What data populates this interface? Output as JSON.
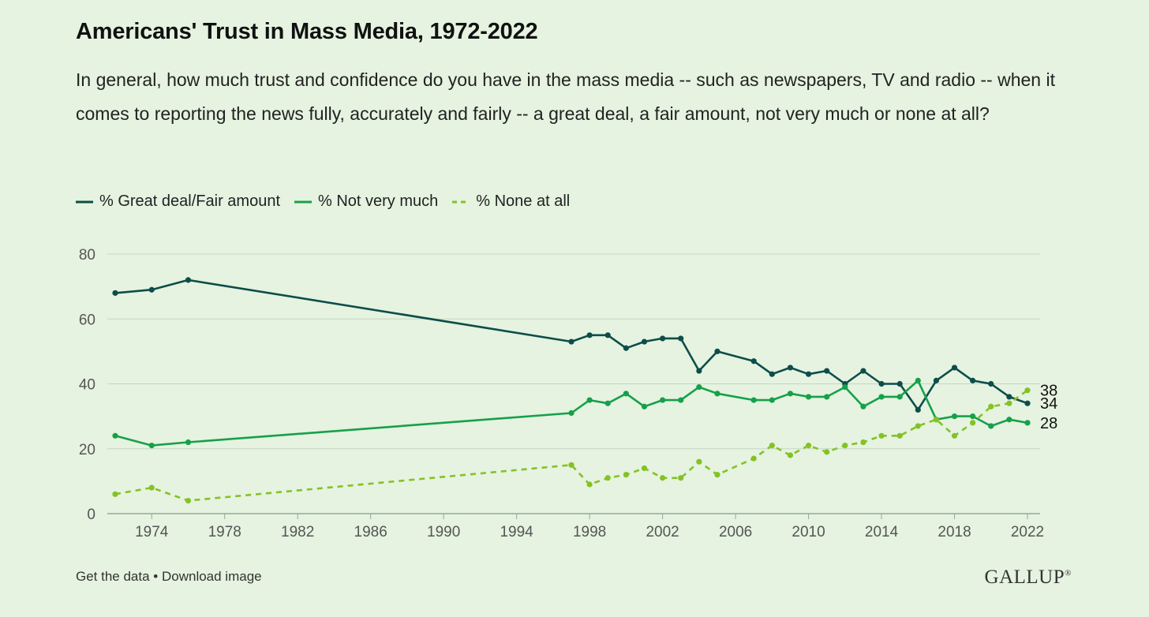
{
  "title": "Americans' Trust in Mass Media, 1972-2022",
  "subtitle": "In general, how much trust and confidence do you have in the mass media -- such as newspapers, TV and radio -- when it comes to reporting the news fully, accurately and fairly -- a great deal, a fair amount, not very much or none at all?",
  "footer": {
    "get_data": "Get the data",
    "separator": " • ",
    "download": "Download image",
    "logo": "GALLUP",
    "logo_mark": "®"
  },
  "chart_data": {
    "type": "line",
    "xlim": [
      1972,
      2022
    ],
    "ylim": [
      0,
      80
    ],
    "yticks": [
      0,
      20,
      40,
      60,
      80
    ],
    "xticks": [
      1974,
      1978,
      1982,
      1986,
      1990,
      1994,
      1998,
      2002,
      2006,
      2010,
      2014,
      2018,
      2022
    ],
    "grid": "horizontal",
    "legend_placement": "top-left",
    "series": [
      {
        "name": "% Great deal/Fair amount",
        "color": "#0d4d4a",
        "style": "solid",
        "end_label": "34",
        "points": [
          [
            1972,
            68
          ],
          [
            1974,
            69
          ],
          [
            1976,
            72
          ],
          [
            1997,
            53
          ],
          [
            1998,
            55
          ],
          [
            1999,
            55
          ],
          [
            2000,
            51
          ],
          [
            2001,
            53
          ],
          [
            2002,
            54
          ],
          [
            2003,
            54
          ],
          [
            2004,
            44
          ],
          [
            2005,
            50
          ],
          [
            2007,
            47
          ],
          [
            2008,
            43
          ],
          [
            2009,
            45
          ],
          [
            2010,
            43
          ],
          [
            2011,
            44
          ],
          [
            2012,
            40
          ],
          [
            2013,
            44
          ],
          [
            2014,
            40
          ],
          [
            2015,
            40
          ],
          [
            2016,
            32
          ],
          [
            2017,
            41
          ],
          [
            2018,
            45
          ],
          [
            2019,
            41
          ],
          [
            2020,
            40
          ],
          [
            2021,
            36
          ],
          [
            2022,
            34
          ]
        ]
      },
      {
        "name": "% Not very much",
        "color": "#16a04a",
        "style": "solid",
        "end_label": "28",
        "points": [
          [
            1972,
            24
          ],
          [
            1974,
            21
          ],
          [
            1976,
            22
          ],
          [
            1997,
            31
          ],
          [
            1998,
            35
          ],
          [
            1999,
            34
          ],
          [
            2000,
            37
          ],
          [
            2001,
            33
          ],
          [
            2002,
            35
          ],
          [
            2003,
            35
          ],
          [
            2004,
            39
          ],
          [
            2005,
            37
          ],
          [
            2007,
            35
          ],
          [
            2008,
            35
          ],
          [
            2009,
            37
          ],
          [
            2010,
            36
          ],
          [
            2011,
            36
          ],
          [
            2012,
            39
          ],
          [
            2013,
            33
          ],
          [
            2014,
            36
          ],
          [
            2015,
            36
          ],
          [
            2016,
            41
          ],
          [
            2017,
            29
          ],
          [
            2018,
            30
          ],
          [
            2019,
            30
          ],
          [
            2020,
            27
          ],
          [
            2021,
            29
          ],
          [
            2022,
            28
          ]
        ]
      },
      {
        "name": "% None at all",
        "color": "#84c225",
        "style": "dashed",
        "end_label": "38",
        "points": [
          [
            1972,
            6
          ],
          [
            1974,
            8
          ],
          [
            1976,
            4
          ],
          [
            1997,
            15
          ],
          [
            1998,
            9
          ],
          [
            1999,
            11
          ],
          [
            2000,
            12
          ],
          [
            2001,
            14
          ],
          [
            2002,
            11
          ],
          [
            2003,
            11
          ],
          [
            2004,
            16
          ],
          [
            2005,
            12
          ],
          [
            2007,
            17
          ],
          [
            2008,
            21
          ],
          [
            2009,
            18
          ],
          [
            2010,
            21
          ],
          [
            2011,
            19
          ],
          [
            2012,
            21
          ],
          [
            2013,
            22
          ],
          [
            2014,
            24
          ],
          [
            2015,
            24
          ],
          [
            2016,
            27
          ],
          [
            2017,
            29
          ],
          [
            2018,
            24
          ],
          [
            2019,
            28
          ],
          [
            2020,
            33
          ],
          [
            2021,
            34
          ],
          [
            2022,
            38
          ]
        ]
      }
    ]
  }
}
